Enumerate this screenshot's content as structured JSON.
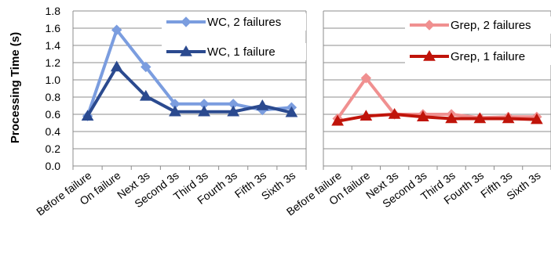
{
  "chart_data": [
    {
      "type": "line",
      "title": "",
      "xlabel": "",
      "ylabel": "Processing Time (s)",
      "ylim": [
        0,
        1.8
      ],
      "yticks": [
        "0.0",
        "0.2",
        "0.4",
        "0.6",
        "0.8",
        "1.0",
        "1.2",
        "1.4",
        "1.6",
        "1.8"
      ],
      "grid": true,
      "legend_position": "top-right",
      "categories": [
        "Before failure",
        "On failure",
        "Next 3s",
        "Second 3s",
        "Third 3s",
        "Fourth 3s",
        "Fifth 3s",
        "Sixth 3s"
      ],
      "series": [
        {
          "name": "WC, 2 failures",
          "marker": "diamond",
          "color": "#7b9ddf",
          "values": [
            0.58,
            1.58,
            1.15,
            0.72,
            0.72,
            0.72,
            0.65,
            0.68
          ]
        },
        {
          "name": "WC, 1 failure",
          "marker": "triangle",
          "color": "#2b4a8f",
          "values": [
            0.58,
            1.15,
            0.81,
            0.63,
            0.63,
            0.63,
            0.7,
            0.62
          ]
        }
      ]
    },
    {
      "type": "line",
      "title": "",
      "xlabel": "",
      "ylabel": "",
      "ylim": [
        0,
        1.8
      ],
      "grid": true,
      "legend_position": "top-right",
      "categories": [
        "Before failure",
        "On failure",
        "Next 3s",
        "Second 3s",
        "Third 3s",
        "Fourth 3s",
        "Fifth 3s",
        "Sixth 3s"
      ],
      "series": [
        {
          "name": "Grep, 2 failures",
          "marker": "diamond",
          "color": "#f09090",
          "values": [
            0.55,
            1.02,
            0.6,
            0.6,
            0.6,
            0.56,
            0.57,
            0.57
          ]
        },
        {
          "name": "Grep, 1 failure",
          "marker": "triangle",
          "color": "#c0140a",
          "values": [
            0.52,
            0.58,
            0.6,
            0.57,
            0.55,
            0.55,
            0.55,
            0.54
          ]
        }
      ]
    }
  ]
}
